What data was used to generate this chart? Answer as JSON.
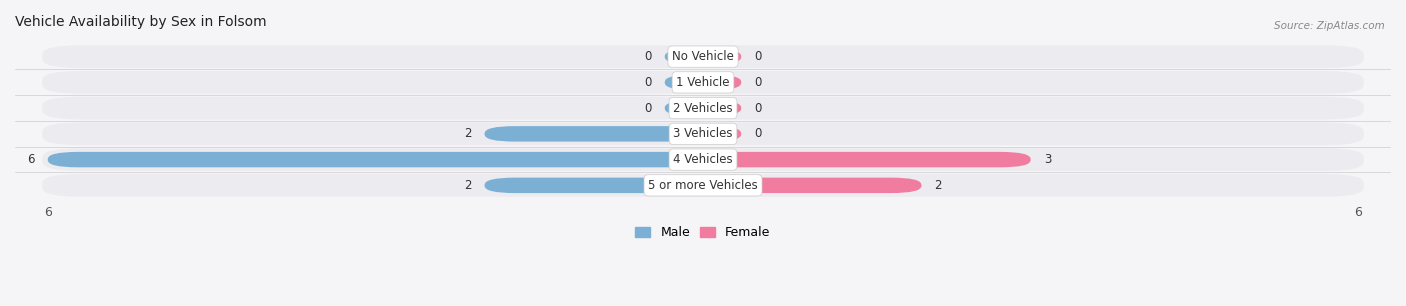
{
  "title": "Vehicle Availability by Sex in Folsom",
  "source": "Source: ZipAtlas.com",
  "categories": [
    "No Vehicle",
    "1 Vehicle",
    "2 Vehicles",
    "3 Vehicles",
    "4 Vehicles",
    "5 or more Vehicles"
  ],
  "male_values": [
    0,
    0,
    0,
    2,
    6,
    2
  ],
  "female_values": [
    0,
    0,
    0,
    0,
    3,
    2
  ],
  "male_color": "#7bafd4",
  "female_color": "#f07ca0",
  "row_bg_color": "#ebebf0",
  "row_bg_alt": "#f2f2f7",
  "x_max": 6,
  "min_bar_val": 0.35,
  "legend_male": "Male",
  "legend_female": "Female",
  "background_color": "#f5f5f8",
  "title_fontsize": 10,
  "label_fontsize": 8.5,
  "val_fontsize": 8.5
}
